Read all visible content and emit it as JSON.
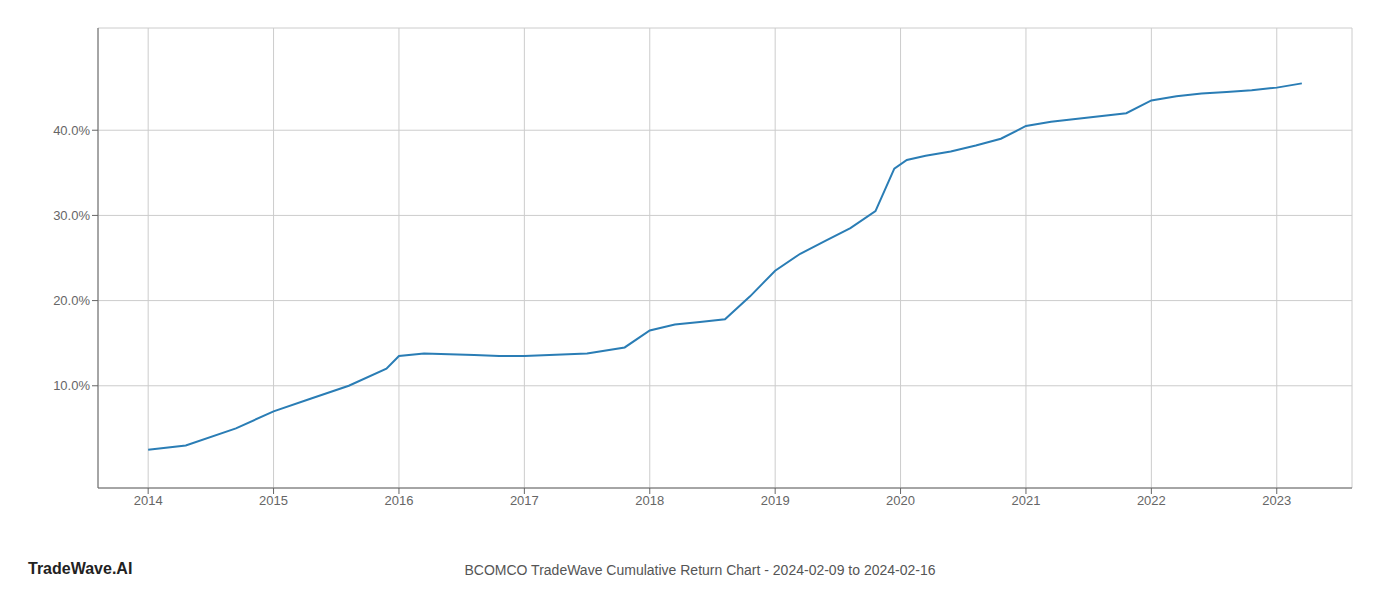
{
  "chart_data": {
    "type": "line",
    "title": "BCOMCO TradeWave Cumulative Return Chart - 2024-02-09 to 2024-02-16",
    "annotations": [
      "TradeWave.AI"
    ],
    "x": [
      2014.0,
      2014.3,
      2014.7,
      2015.0,
      2015.3,
      2015.6,
      2015.9,
      2016.0,
      2016.2,
      2016.4,
      2016.6,
      2016.8,
      2017.0,
      2017.2,
      2017.5,
      2017.8,
      2018.0,
      2018.2,
      2018.4,
      2018.6,
      2018.8,
      2019.0,
      2019.2,
      2019.4,
      2019.6,
      2019.8,
      2019.95,
      2020.05,
      2020.2,
      2020.4,
      2020.6,
      2020.8,
      2021.0,
      2021.2,
      2021.5,
      2021.8,
      2022.0,
      2022.2,
      2022.4,
      2022.6,
      2022.8,
      2023.0,
      2023.2
    ],
    "values": [
      2.5,
      3.0,
      5.0,
      7.0,
      8.5,
      10.0,
      12.0,
      13.5,
      13.8,
      13.7,
      13.6,
      13.5,
      13.5,
      13.6,
      13.8,
      14.5,
      16.5,
      17.2,
      17.5,
      17.8,
      20.5,
      23.5,
      25.5,
      27.0,
      28.5,
      30.5,
      35.5,
      36.5,
      37.0,
      37.5,
      38.2,
      39.0,
      40.5,
      41.0,
      41.5,
      42.0,
      43.5,
      44.0,
      44.3,
      44.5,
      44.7,
      45.0,
      45.5
    ],
    "color": "#2a7db5",
    "xlim": [
      2013.6,
      2023.6
    ],
    "xticks": [
      2014,
      2015,
      2016,
      2017,
      2018,
      2019,
      2020,
      2021,
      2022,
      2023
    ],
    "ylim": [
      -2,
      52
    ],
    "yticks": [
      {
        "value": 10.0,
        "label": "10.0%"
      },
      {
        "value": 20.0,
        "label": "20.0%"
      },
      {
        "value": 30.0,
        "label": "30.0%"
      },
      {
        "value": 40.0,
        "label": "40.0%"
      }
    ],
    "grid": true
  }
}
